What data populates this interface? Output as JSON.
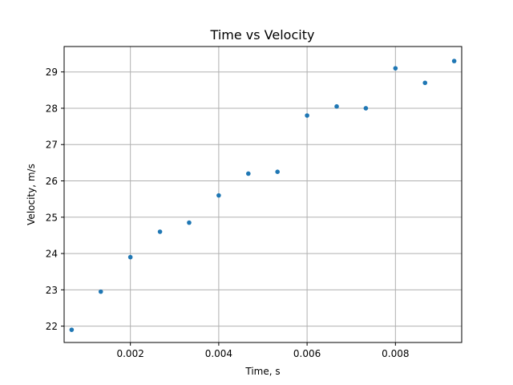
{
  "chart_data": {
    "type": "scatter",
    "title": "Time vs Velocity",
    "xlabel": "Time, s",
    "ylabel": "Velocity, m/s",
    "xlim": [
      0.0005,
      0.0095
    ],
    "ylim": [
      21.55,
      29.7
    ],
    "xticks": [
      0.002,
      0.004,
      0.006,
      0.008
    ],
    "xtick_labels": [
      "0.002",
      "0.004",
      "0.006",
      "0.008"
    ],
    "yticks": [
      22,
      23,
      24,
      25,
      26,
      27,
      28,
      29
    ],
    "ytick_labels": [
      "22",
      "23",
      "24",
      "25",
      "26",
      "27",
      "28",
      "29"
    ],
    "grid": true,
    "marker_color": "#1f77b4",
    "series": [
      {
        "x": [
          0.00067,
          0.00133,
          0.002,
          0.00267,
          0.00333,
          0.004,
          0.00467,
          0.00533,
          0.006,
          0.00667,
          0.00733,
          0.008,
          0.00867,
          0.00933
        ],
        "y": [
          21.9,
          22.95,
          23.9,
          24.6,
          24.85,
          25.6,
          26.2,
          26.25,
          27.8,
          28.05,
          28.0,
          29.1,
          28.7,
          29.3
        ]
      }
    ]
  }
}
